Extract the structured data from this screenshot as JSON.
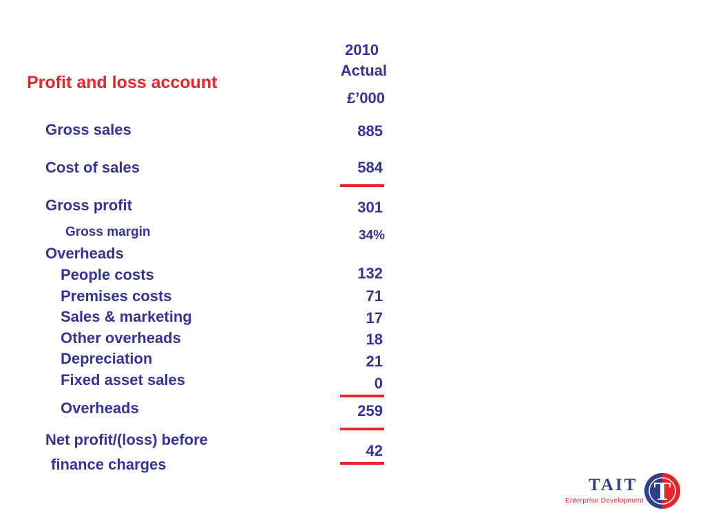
{
  "title": "Profit and loss account",
  "column_header": {
    "year": "2010",
    "type": "Actual",
    "unit": "£’000"
  },
  "rows": {
    "gross_sales": {
      "label": "Gross sales",
      "value": "885"
    },
    "cost_of_sales": {
      "label": "Cost of sales",
      "value": "584"
    },
    "gross_profit": {
      "label": "Gross profit",
      "value": "301"
    },
    "gross_margin": {
      "label": "Gross margin",
      "value": "34%"
    },
    "overheads_heading": {
      "label": "Overheads"
    },
    "people_costs": {
      "label": "People costs",
      "value": "132"
    },
    "premises_costs": {
      "label": "Premises costs",
      "value": "71"
    },
    "sales_marketing": {
      "label": "Sales & marketing",
      "value": "17"
    },
    "other_overheads": {
      "label": "Other overheads",
      "value": "18"
    },
    "depreciation": {
      "label": "Depreciation",
      "value": "21"
    },
    "fixed_asset_sales": {
      "label": "Fixed asset sales",
      "value": "0"
    },
    "overheads_total": {
      "label": "Overheads",
      "value": "259"
    },
    "net_profit": {
      "label_line1": "Net profit/(loss) before",
      "label_line2": "finance charges",
      "value": "42"
    }
  },
  "logo": {
    "name": "TAIT",
    "tagline": "Enterprise Development",
    "mark_letter": "T"
  },
  "colors": {
    "title": "#e8262a",
    "text": "#333399",
    "rule": "#e8262a",
    "logo_blue": "#2e3f8f",
    "logo_red": "#e8262a"
  }
}
